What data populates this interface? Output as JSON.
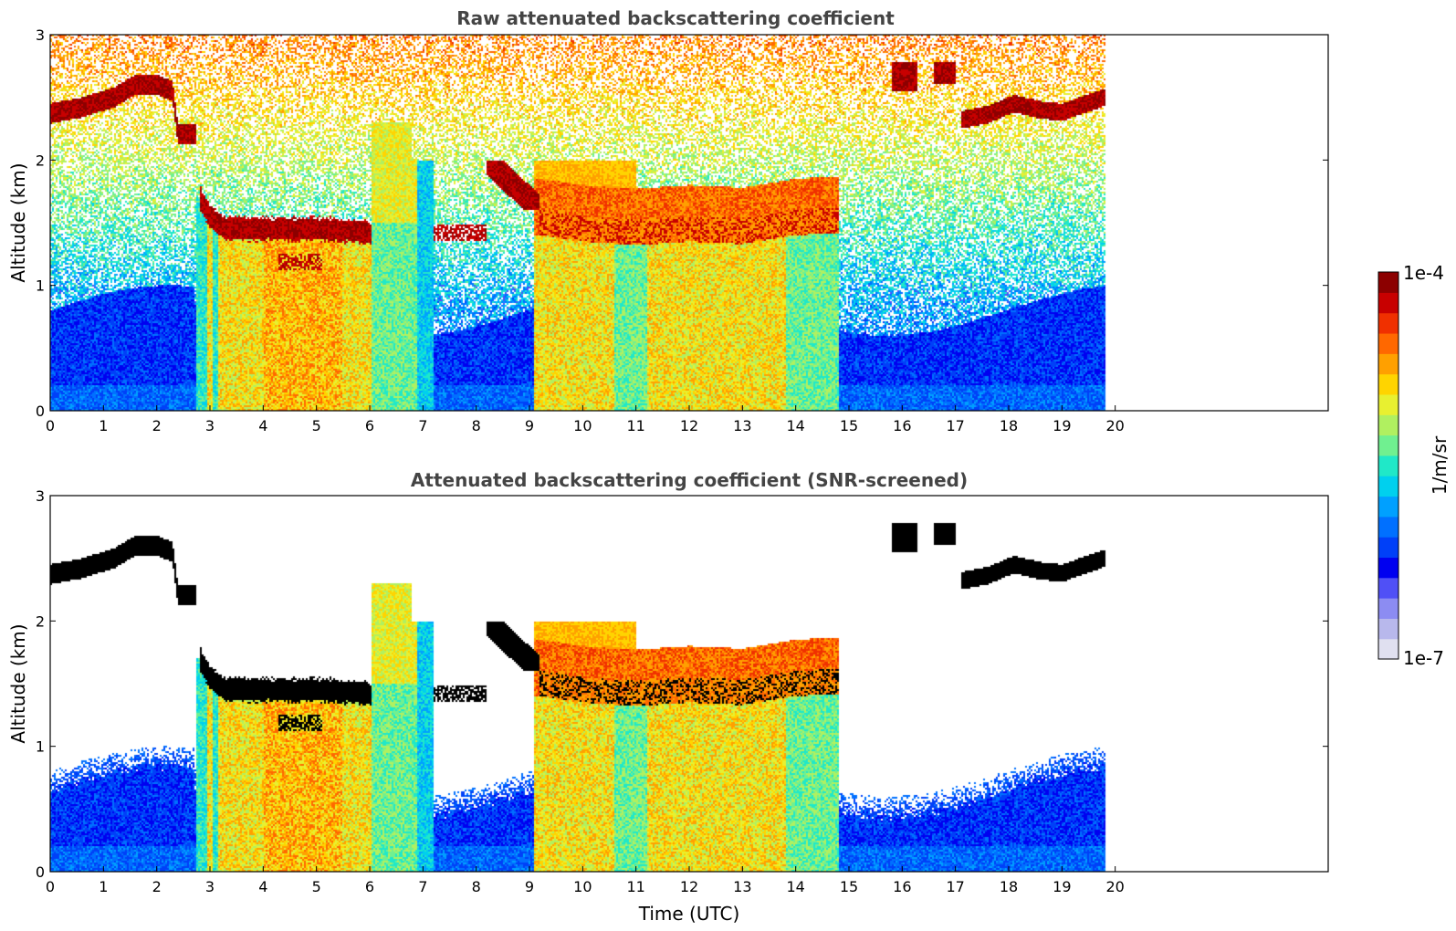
{
  "colors": {
    "colormap": [
      "#e0e0f0",
      "#b8b8ec",
      "#8c8cf2",
      "#5050f6",
      "#0000f0",
      "#0040f8",
      "#0070ff",
      "#00a0ff",
      "#00d0ee",
      "#20e8c8",
      "#70f090",
      "#b0f060",
      "#e8f030",
      "#ffd400",
      "#ffa000",
      "#ff6800",
      "#f03000",
      "#c80000",
      "#8c0000"
    ],
    "saturated": "#000000",
    "frame": "#000000"
  },
  "chart_data": [
    {
      "type": "heatmap",
      "title": "Raw attenuated backscattering coefficient",
      "xlabel": "",
      "ylabel": "Altitude (km)",
      "xlim": [
        0,
        24
      ],
      "ylim": [
        0,
        3
      ],
      "xticks": [
        "0",
        "1",
        "2",
        "3",
        "4",
        "5",
        "6",
        "7",
        "8",
        "9",
        "10",
        "11",
        "12",
        "13",
        "14",
        "15",
        "16",
        "17",
        "18",
        "19",
        "20"
      ],
      "yticks": [
        "0",
        "1",
        "2",
        "3"
      ],
      "data_end_hour": 19.8,
      "snr_screened": false
    },
    {
      "type": "heatmap",
      "title": "Attenuated backscattering coefficient (SNR-screened)",
      "xlabel": "Time (UTC)",
      "ylabel": "Altitude (km)",
      "xlim": [
        0,
        24
      ],
      "ylim": [
        0,
        3
      ],
      "xticks": [
        "0",
        "1",
        "2",
        "3",
        "4",
        "5",
        "6",
        "7",
        "8",
        "9",
        "10",
        "11",
        "12",
        "13",
        "14",
        "15",
        "16",
        "17",
        "18",
        "19",
        "20"
      ],
      "yticks": [
        "0",
        "1",
        "2",
        "3"
      ],
      "data_end_hour": 19.8,
      "snr_screened": true
    }
  ],
  "colorbar": {
    "label": "1/m/sr",
    "max_label": "1e-4",
    "min_label": "1e-7",
    "scale": "log",
    "range": [
      1e-07,
      0.0001
    ]
  }
}
